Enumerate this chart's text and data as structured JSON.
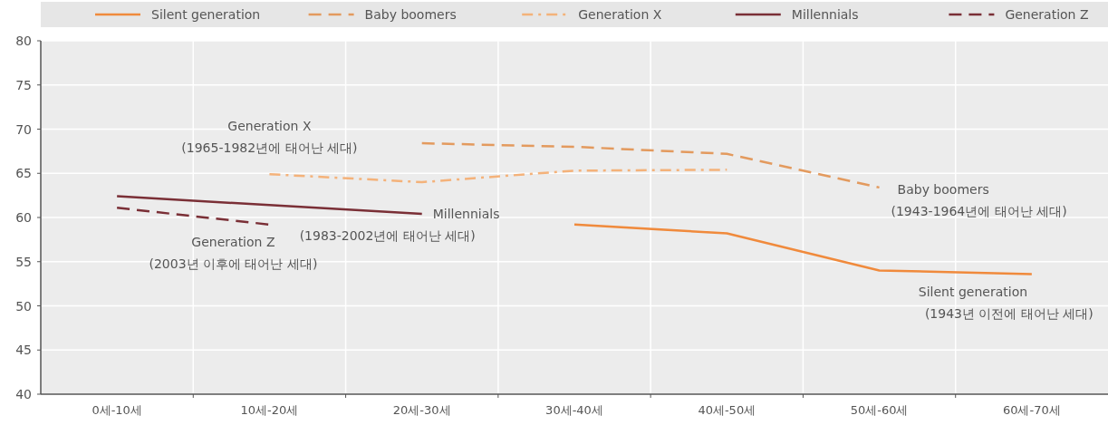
{
  "chart_data": {
    "type": "line",
    "categories": [
      "0세-10세",
      "10세-20세",
      "20세-30세",
      "30세-40세",
      "40세-50세",
      "50세-60세",
      "60세-70세"
    ],
    "ylim": [
      40,
      80
    ],
    "yticks": [
      40,
      45,
      50,
      55,
      60,
      65,
      70,
      75,
      80
    ],
    "grid": true,
    "legend": "top",
    "marker": "none",
    "series": [
      {
        "name": "Silent generation",
        "color": "#f08a3c",
        "line_style": "solid",
        "values": [
          null,
          null,
          null,
          59.2,
          58.2,
          54.0,
          53.6
        ]
      },
      {
        "name": "Baby boomers",
        "color": "#e39a5e",
        "line_style": "dashed",
        "values": [
          null,
          null,
          68.4,
          68.0,
          67.2,
          63.4,
          null
        ]
      },
      {
        "name": "Generation X",
        "color": "#f4b27a",
        "line_style": "dashdot",
        "values": [
          null,
          64.9,
          64.0,
          65.3,
          65.4,
          null,
          null
        ]
      },
      {
        "name": "Millennials",
        "color": "#7a2f36",
        "line_style": "solid",
        "values": [
          62.4,
          61.4,
          60.4,
          null,
          null,
          null,
          null
        ]
      },
      {
        "name": "Generation Z",
        "color": "#7a2f36",
        "line_style": "dashed",
        "values": [
          61.1,
          59.2,
          null,
          null,
          null,
          null,
          null
        ]
      }
    ],
    "annotations": [
      {
        "text": "Generation X\n(1965-1982년에 태어난 세대)",
        "x": "10세-20세",
        "y": 64.9
      },
      {
        "text": "Generation Z\n(2003년 이후에 태어난 세대)",
        "x": "10세-20세",
        "y": 59.2
      },
      {
        "text": "Millennials\n(1983-2002년에 태어난 세대)",
        "x": "20세-30세",
        "y": 60.4
      },
      {
        "text": "Baby boomers\n(1943-1964년에 태어난 세대)",
        "x": "50세-60세",
        "y": 63.4
      },
      {
        "text": "Silent generation\n(1943년 이전에 태어난 세대)",
        "x": "60세-70세",
        "y": 53.6
      }
    ]
  }
}
